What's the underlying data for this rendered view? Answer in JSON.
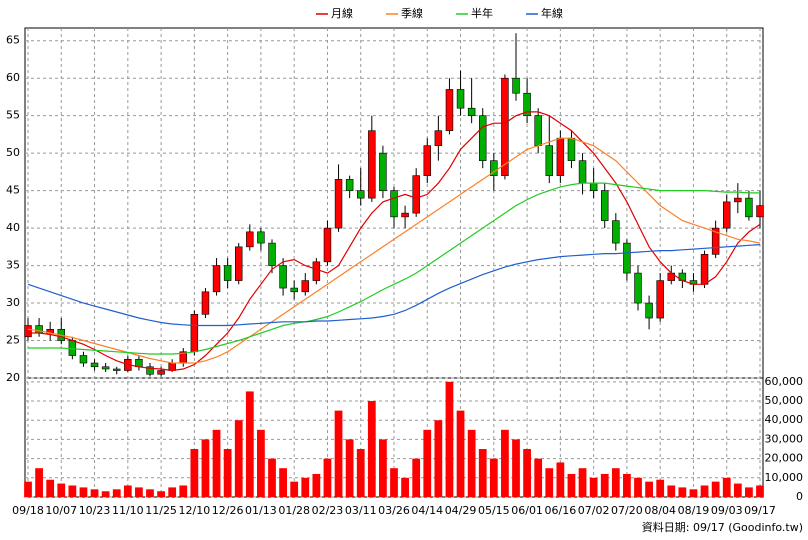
{
  "chart_data": [
    {
      "type": "candlestick",
      "categories": [
        "09/18",
        null,
        null,
        "10/07",
        null,
        null,
        "10/23",
        null,
        null,
        "11/10",
        null,
        null,
        "11/25",
        null,
        null,
        "12/10",
        null,
        null,
        "12/26",
        null,
        null,
        "01/13",
        null,
        null,
        "01/28",
        null,
        null,
        "02/23",
        null,
        null,
        "03/11",
        null,
        null,
        "03/26",
        null,
        null,
        "04/14",
        null,
        null,
        "04/29",
        null,
        null,
        "05/15",
        null,
        null,
        "06/01",
        null,
        null,
        "06/16",
        null,
        null,
        "07/02",
        null,
        null,
        "07/20",
        null,
        null,
        "08/04",
        null,
        null,
        "08/19",
        null,
        null,
        "09/03",
        null,
        null,
        "09/17"
      ],
      "open": [
        25.5,
        27,
        26,
        26.5,
        25,
        23,
        22,
        21.5,
        21.2,
        21,
        22.5,
        21.5,
        20.5,
        21,
        22,
        23.5,
        28.5,
        31.5,
        35,
        33,
        37.5,
        39.5,
        38,
        35,
        32,
        31.5,
        33,
        35.5,
        40,
        46.5,
        45,
        44,
        50,
        45,
        41.5,
        42,
        47,
        51,
        53,
        58.5,
        56,
        55,
        49,
        47,
        60,
        58,
        55,
        51,
        47,
        52,
        49,
        46,
        45,
        41,
        38,
        34,
        30,
        28,
        33,
        34,
        33,
        32.5,
        36.5,
        40,
        43.5,
        44,
        41.5
      ],
      "high": [
        28,
        28,
        27.5,
        28,
        25.5,
        23.5,
        22.5,
        22,
        21.5,
        23,
        23,
        22,
        21.5,
        22.5,
        24,
        29,
        32,
        36,
        36,
        38,
        40.5,
        40,
        38.5,
        36,
        33,
        34,
        36,
        41,
        48.5,
        47,
        48,
        55,
        51,
        45.5,
        43,
        48,
        52,
        55,
        60,
        61,
        60,
        56,
        50,
        60.5,
        66,
        60,
        56,
        55,
        53,
        53,
        50,
        48,
        46,
        42,
        38.5,
        35,
        31,
        34,
        35,
        34.5,
        34,
        37,
        41,
        44.5,
        46,
        45,
        45
      ],
      "low": [
        25,
        25.5,
        25,
        24.5,
        22.5,
        21.5,
        21,
        20.8,
        20.5,
        20.8,
        21,
        20.2,
        20.2,
        20.8,
        21.5,
        23,
        28,
        31,
        32,
        32.5,
        37,
        37,
        34,
        31,
        30.5,
        31,
        32.5,
        35,
        39.5,
        44,
        43,
        43.5,
        44,
        40,
        40,
        41.5,
        46,
        49,
        52.5,
        55,
        54,
        48,
        45,
        46.5,
        57,
        54,
        50,
        46,
        46,
        48,
        44.5,
        44,
        40,
        37,
        33,
        29,
        26.5,
        27.5,
        32.5,
        32,
        31.5,
        32,
        36,
        39.5,
        42,
        41,
        40
      ],
      "close": [
        27,
        26,
        26.5,
        25,
        23,
        22,
        21.5,
        21.2,
        21,
        22.5,
        21.5,
        20.5,
        21,
        22,
        23.5,
        28.5,
        31.5,
        35,
        33,
        37.5,
        39.5,
        38,
        35,
        32,
        31.5,
        33,
        35.5,
        40,
        46.5,
        45,
        44,
        53,
        45,
        41.5,
        42,
        47,
        51,
        53,
        58.5,
        56,
        55,
        49,
        47,
        60,
        58,
        55,
        51,
        47,
        52,
        49,
        46,
        45,
        41,
        38,
        34,
        30,
        28,
        33,
        34,
        33,
        32.5,
        36.5,
        40,
        43.5,
        44,
        41.5,
        43
      ],
      "up_color": "#ff0000",
      "down_color": "#00b000",
      "lines": [
        {
          "name": "月線",
          "color": "#e00000",
          "values": [
            26,
            26,
            25.8,
            25.5,
            25,
            24.5,
            23.8,
            23,
            22.3,
            21.8,
            21.5,
            21.3,
            21.2,
            21,
            21.2,
            21.8,
            23,
            24.5,
            26,
            28,
            30.5,
            32.5,
            34.5,
            35.5,
            35.8,
            35,
            34.5,
            34,
            35,
            37.5,
            40,
            42,
            43.5,
            44,
            44.5,
            44,
            44.5,
            46,
            48,
            50.5,
            52,
            53.5,
            54,
            54,
            55,
            55.5,
            55.5,
            55,
            54,
            53,
            51.5,
            50,
            48,
            46,
            43.5,
            40.5,
            37.5,
            35.5,
            34,
            33,
            32.5,
            32.5,
            33.5,
            35.5,
            38,
            39.5,
            40.5
          ]
        },
        {
          "name": "季線",
          "color": "#ff7f27",
          "values": [
            26.5,
            26.3,
            26,
            25.7,
            25.4,
            25,
            24.6,
            24.2,
            23.8,
            23.4,
            23,
            22.6,
            22.3,
            22,
            22,
            22,
            22.3,
            22.8,
            23.5,
            24.5,
            25.5,
            26.5,
            27.5,
            28.5,
            29.5,
            30.5,
            31.5,
            32.5,
            33.5,
            34.5,
            35.5,
            36.5,
            37.5,
            38.5,
            39.5,
            40.5,
            41.5,
            42.5,
            43.5,
            44.5,
            45.5,
            46.5,
            47.5,
            48.5,
            49.5,
            50.5,
            51,
            51.5,
            52,
            52,
            51.5,
            51,
            50,
            49,
            47.5,
            46,
            44.5,
            43,
            42,
            41,
            40.5,
            40,
            39.5,
            39,
            38.5,
            38.3,
            38
          ]
        },
        {
          "name": "半年",
          "color": "#22cc22",
          "values": [
            24,
            24,
            24,
            24,
            23.9,
            23.8,
            23.7,
            23.6,
            23.5,
            23.4,
            23.3,
            23.2,
            23.2,
            23.2,
            23.3,
            23.5,
            23.8,
            24.2,
            24.6,
            25,
            25.5,
            26,
            26.5,
            27,
            27.3,
            27.5,
            27.8,
            28.2,
            28.8,
            29.5,
            30.2,
            31,
            31.8,
            32.5,
            33.2,
            34,
            35,
            36,
            37,
            38,
            39,
            40,
            41,
            42,
            43,
            43.8,
            44.5,
            45,
            45.5,
            45.8,
            46,
            46,
            46,
            45.8,
            45.6,
            45.4,
            45.2,
            45,
            45,
            45,
            45,
            45,
            44.9,
            44.8,
            44.8,
            44.7,
            44.7
          ]
        },
        {
          "name": "年線",
          "color": "#1f5fd0",
          "values": [
            32.5,
            32,
            31.5,
            31,
            30.5,
            30,
            29.6,
            29.2,
            28.8,
            28.4,
            28,
            27.7,
            27.4,
            27.2,
            27.1,
            27,
            27,
            27,
            27,
            27.1,
            27.2,
            27.3,
            27.4,
            27.5,
            27.5,
            27.5,
            27.6,
            27.6,
            27.7,
            27.8,
            27.9,
            28,
            28.2,
            28.5,
            29,
            29.7,
            30.5,
            31.3,
            32,
            32.6,
            33.2,
            33.8,
            34.3,
            34.8,
            35.2,
            35.5,
            35.8,
            36,
            36.2,
            36.3,
            36.4,
            36.5,
            36.6,
            36.6,
            36.7,
            36.8,
            36.9,
            37,
            37,
            37.1,
            37.2,
            37.3,
            37.4,
            37.5,
            37.6,
            37.7,
            37.8
          ]
        }
      ],
      "ylim": [
        20,
        66.7
      ],
      "yticks": [
        20,
        25,
        30,
        35,
        40,
        45,
        50,
        55,
        60,
        65
      ],
      "grid": true
    },
    {
      "type": "bar",
      "values": [
        8000,
        15000,
        9000,
        7000,
        6000,
        5000,
        4000,
        3000,
        4000,
        6000,
        5000,
        4000,
        3000,
        5000,
        6000,
        25000,
        30000,
        35000,
        25000,
        40000,
        55000,
        35000,
        20000,
        15000,
        8000,
        10000,
        12000,
        20000,
        45000,
        30000,
        25000,
        50000,
        30000,
        15000,
        10000,
        20000,
        35000,
        40000,
        60000,
        45000,
        35000,
        25000,
        20000,
        35000,
        30000,
        25000,
        20000,
        15000,
        18000,
        12000,
        15000,
        10000,
        12000,
        15000,
        12000,
        10000,
        8000,
        9000,
        6000,
        5000,
        4000,
        6000,
        8000,
        10000,
        7000,
        5000,
        6000
      ],
      "color": "#ff0000",
      "ylim": [
        0,
        62000
      ],
      "yticks": [
        0,
        {
          "value": 10000,
          "label": "10,000"
        },
        {
          "value": 20000,
          "label": "20,000"
        },
        {
          "value": 30000,
          "label": "30,000"
        },
        {
          "value": 40000,
          "label": "40,000"
        },
        {
          "value": 50000,
          "label": "50,000"
        },
        {
          "value": 60000,
          "label": "60,000"
        }
      ],
      "grid": true,
      "footer": "資料日期: 09/17  (Goodinfo.tw)"
    }
  ]
}
